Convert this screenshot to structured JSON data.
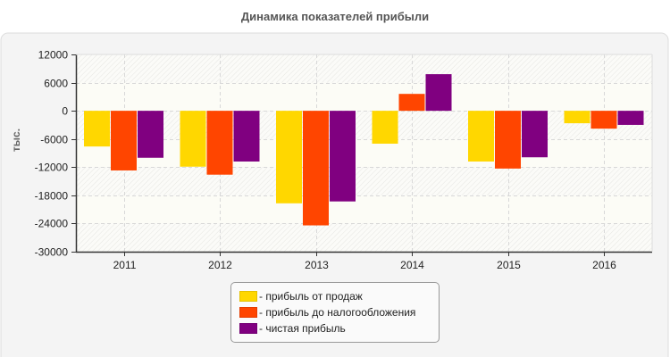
{
  "chart_data": {
    "type": "bar",
    "title": "Динамика показателей прибыли",
    "ylabel": "тыс.",
    "xlabel": "",
    "categories": [
      "2011",
      "2012",
      "2013",
      "2014",
      "2015",
      "2016"
    ],
    "ylim": [
      -30000,
      12000
    ],
    "yticks": [
      12000,
      6000,
      0,
      -6000,
      -12000,
      -18000,
      -24000,
      -30000
    ],
    "grid": true,
    "legend_position": "bottom",
    "series": [
      {
        "name": "- прибыль от продаж",
        "color": "#FFD700",
        "values": [
          -7600,
          -11900,
          -19700,
          -7000,
          -10800,
          -2650
        ]
      },
      {
        "name": "- прибыль до налогообложения",
        "color": "#FF4500",
        "values": [
          -12700,
          -13600,
          -24400,
          3600,
          -12300,
          -3800
        ]
      },
      {
        "name": "- чистая прибыль",
        "color": "#800080",
        "values": [
          -10000,
          -10800,
          -19300,
          7800,
          -9900,
          -3000
        ]
      }
    ]
  }
}
